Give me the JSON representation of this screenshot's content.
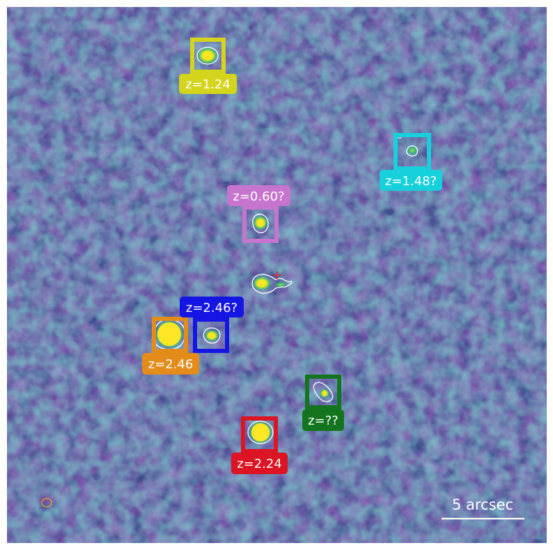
{
  "image": {
    "colormap": "viridis",
    "background_color": "#3b4c8c",
    "noise_color_low": "#43146b",
    "noise_color_high": "#2f7f8d"
  },
  "sources": [
    {
      "id": "yellow",
      "label": "z=1.24",
      "color": "#d4d41c"
    },
    {
      "id": "cyan",
      "label": "z=1.48?",
      "color": "#16d0dc"
    },
    {
      "id": "violet",
      "label": "z=0.60?",
      "color": "#c774cf"
    },
    {
      "id": "blue",
      "label": "z=2.46?",
      "color": "#1616e4"
    },
    {
      "id": "orange",
      "label": "z=2.46",
      "color": "#e48c1a"
    },
    {
      "id": "green",
      "label": "z=??",
      "color": "#13761f"
    },
    {
      "id": "red",
      "label": "z=2.24",
      "color": "#dc1424"
    }
  ],
  "center_marker": {
    "symbol": "+",
    "color": "#e0282c"
  },
  "beam": {
    "color": "#e0a020"
  },
  "scale_bar": {
    "label": "5 arcsec",
    "color": "#ffffff"
  },
  "contour_color": "#ffffff",
  "source_colors": {
    "peak": "#fde725",
    "ring": "#5ec962"
  }
}
